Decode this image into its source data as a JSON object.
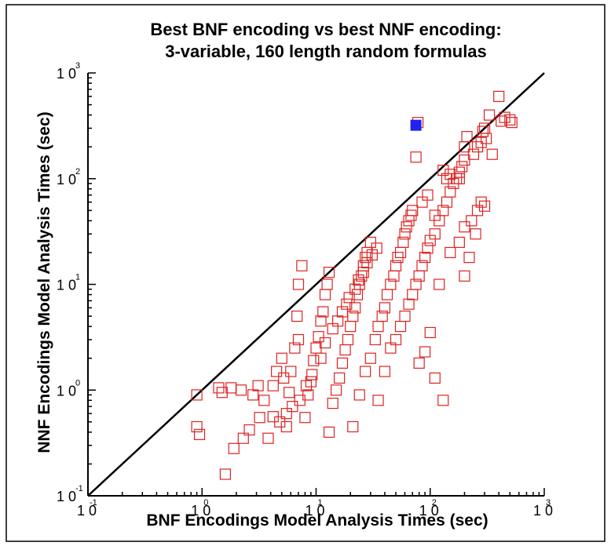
{
  "chart_data": {
    "type": "scatter",
    "title": "Best BNF encoding vs best NNF encoding:",
    "subtitle": "3-variable, 160 length random formulas",
    "xlabel": "BNF Encodings Model Analysis Times (sec)",
    "ylabel": "NNF Encodings Model Analysis Times (sec)",
    "xscale": "log",
    "yscale": "log",
    "xlim": [
      0.1,
      1000
    ],
    "ylim": [
      0.1,
      1000
    ],
    "x_tick_labels": [
      {
        "base": "1 0",
        "exp": "-1",
        "value": 0.1
      },
      {
        "base": "1 0",
        "exp": "0",
        "value": 1
      },
      {
        "base": "1 0",
        "exp": "1",
        "value": 10
      },
      {
        "base": "1 0",
        "exp": "2",
        "value": 100
      },
      {
        "base": "1 0",
        "exp": "3",
        "value": 1000
      }
    ],
    "y_tick_labels": [
      {
        "base": "1 0",
        "exp": "-1",
        "value": 0.1
      },
      {
        "base": "1 0",
        "exp": "0",
        "value": 1
      },
      {
        "base": "1 0",
        "exp": "1",
        "value": 10
      },
      {
        "base": "1 0",
        "exp": "2",
        "value": 100
      },
      {
        "base": "1 0",
        "exp": "3",
        "value": 1000
      }
    ],
    "reference_line": {
      "from": [
        0.1,
        0.1
      ],
      "to": [
        1000,
        1000
      ],
      "color": "#000000"
    },
    "colors": {
      "series_stroke": "#dd2222",
      "highlight_fill": "#2222ee"
    },
    "series": [
      {
        "marker": "hollow-square",
        "points": [
          [
            0.9,
            0.9
          ],
          [
            0.9,
            0.45
          ],
          [
            0.95,
            0.38
          ],
          [
            1.6,
            0.16
          ],
          [
            1.5,
            0.95
          ],
          [
            1.4,
            1.05
          ],
          [
            1.8,
            1.05
          ],
          [
            1.9,
            0.28
          ],
          [
            2.3,
            0.35
          ],
          [
            2.6,
            0.42
          ],
          [
            2.2,
            1.0
          ],
          [
            2.8,
            0.9
          ],
          [
            3.1,
            1.1
          ],
          [
            3.5,
            0.8
          ],
          [
            3.2,
            0.55
          ],
          [
            4.2,
            1.1
          ],
          [
            4.5,
            1.5
          ],
          [
            5.0,
            2.0
          ],
          [
            5.2,
            1.3
          ],
          [
            4.8,
            0.5
          ],
          [
            5.5,
            0.6
          ],
          [
            5.8,
            0.95
          ],
          [
            6.0,
            1.5
          ],
          [
            6.5,
            2.5
          ],
          [
            7.0,
            3.0
          ],
          [
            6.8,
            5.0
          ],
          [
            7.0,
            10.0
          ],
          [
            7.5,
            15.0
          ],
          [
            8.0,
            0.55
          ],
          [
            8.5,
            0.9
          ],
          [
            9.0,
            1.2
          ],
          [
            9.5,
            1.9
          ],
          [
            10.0,
            2.5
          ],
          [
            10.5,
            3.2
          ],
          [
            11.0,
            4.5
          ],
          [
            11.5,
            5.5
          ],
          [
            12.0,
            8.0
          ],
          [
            12.5,
            10.0
          ],
          [
            13.0,
            13.0
          ],
          [
            13.0,
            0.4
          ],
          [
            14.0,
            0.75
          ],
          [
            15.0,
            1.0
          ],
          [
            16.0,
            1.3
          ],
          [
            17.0,
            1.8
          ],
          [
            18.0,
            2.4
          ],
          [
            19.0,
            3.0
          ],
          [
            20.0,
            4.0
          ],
          [
            21.0,
            5.0
          ],
          [
            22.0,
            6.0
          ],
          [
            23.0,
            8.0
          ],
          [
            24.0,
            10.0
          ],
          [
            25.0,
            12.0
          ],
          [
            26.0,
            15.0
          ],
          [
            27.0,
            18.0
          ],
          [
            28.0,
            20.0
          ],
          [
            30.0,
            25.0
          ],
          [
            21.0,
            0.45
          ],
          [
            24.0,
            0.9
          ],
          [
            27.0,
            1.5
          ],
          [
            30.0,
            2.0
          ],
          [
            33.0,
            3.0
          ],
          [
            35.0,
            4.0
          ],
          [
            38.0,
            5.0
          ],
          [
            40.0,
            6.0
          ],
          [
            42.0,
            8.0
          ],
          [
            45.0,
            10.0
          ],
          [
            48.0,
            12.0
          ],
          [
            50.0,
            15.0
          ],
          [
            52.0,
            18.0
          ],
          [
            55.0,
            20.0
          ],
          [
            58.0,
            25.0
          ],
          [
            60.0,
            30.0
          ],
          [
            62.0,
            35.0
          ],
          [
            65.0,
            40.0
          ],
          [
            68.0,
            45.0
          ],
          [
            70.0,
            50.0
          ],
          [
            35.0,
            0.8
          ],
          [
            40.0,
            1.5
          ],
          [
            45.0,
            2.5
          ],
          [
            50.0,
            3.0
          ],
          [
            55.0,
            4.0
          ],
          [
            60.0,
            5.0
          ],
          [
            65.0,
            6.5
          ],
          [
            70.0,
            8.0
          ],
          [
            75.0,
            10.0
          ],
          [
            80.0,
            12.0
          ],
          [
            85.0,
            15.0
          ],
          [
            90.0,
            18.0
          ],
          [
            95.0,
            22.0
          ],
          [
            100.0,
            26.0
          ],
          [
            110.0,
            30.0
          ],
          [
            120.0,
            40.0
          ],
          [
            130.0,
            50.0
          ],
          [
            140.0,
            60.0
          ],
          [
            150.0,
            75.0
          ],
          [
            160.0,
            90.0
          ],
          [
            170.0,
            100.0
          ],
          [
            180.0,
            115.0
          ],
          [
            190.0,
            130.0
          ],
          [
            200.0,
            150.0
          ],
          [
            120.0,
            10.0
          ],
          [
            150.0,
            20.0
          ],
          [
            180.0,
            25.0
          ],
          [
            200.0,
            35.0
          ],
          [
            230.0,
            40.0
          ],
          [
            260.0,
            50.0
          ],
          [
            280.0,
            60.0
          ],
          [
            300.0,
            55.0
          ],
          [
            250.0,
            30.0
          ],
          [
            220.0,
            18.0
          ],
          [
            200.0,
            12.0
          ],
          [
            180.0,
            100.0
          ],
          [
            200.0,
            200.0
          ],
          [
            210.0,
            250.0
          ],
          [
            240.0,
            170.0
          ],
          [
            260.0,
            200.0
          ],
          [
            280.0,
            220.0
          ],
          [
            290.0,
            280.0
          ],
          [
            300.0,
            300.0
          ],
          [
            310.0,
            240.0
          ],
          [
            330.0,
            400.0
          ],
          [
            350.0,
            170.0
          ],
          [
            400.0,
            600.0
          ],
          [
            420.0,
            350.0
          ],
          [
            450.0,
            380.0
          ],
          [
            500.0,
            360.0
          ],
          [
            520.0,
            340.0
          ],
          [
            78.0,
            340.0
          ],
          [
            75.0,
            160.0
          ],
          [
            130.0,
            120.0
          ],
          [
            140.0,
            100.0
          ],
          [
            150.0,
            110.0
          ],
          [
            95.0,
            70.0
          ],
          [
            85.0,
            60.0
          ],
          [
            110.0,
            45.0
          ],
          [
            100.0,
            3.5
          ],
          [
            90.0,
            2.3
          ],
          [
            80.0,
            1.8
          ],
          [
            110.0,
            1.3
          ],
          [
            130.0,
            0.8
          ],
          [
            4.2,
            0.56
          ],
          [
            3.8,
            0.35
          ],
          [
            5.5,
            0.45
          ],
          [
            6.2,
            0.7
          ],
          [
            7.2,
            0.8
          ],
          [
            8.2,
            1.1
          ],
          [
            9.2,
            1.4
          ],
          [
            11.0,
            2.0
          ],
          [
            12.0,
            2.8
          ],
          [
            14.0,
            3.8
          ],
          [
            15.5,
            4.5
          ],
          [
            17.0,
            5.5
          ],
          [
            18.5,
            6.5
          ],
          [
            19.5,
            7.5
          ],
          [
            22.0,
            9.0
          ],
          [
            23.5,
            11.0
          ],
          [
            26.0,
            13.0
          ],
          [
            28.0,
            16.0
          ],
          [
            31.0,
            19.0
          ],
          [
            34.0,
            22.0
          ]
        ]
      },
      {
        "marker": "filled-square",
        "highlight": true,
        "points": [
          [
            75.0,
            320.0
          ]
        ]
      }
    ]
  }
}
